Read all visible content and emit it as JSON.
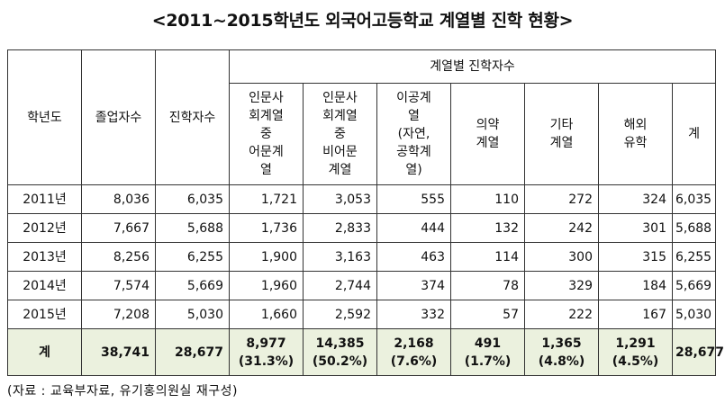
{
  "title": "<2011~2015학년도 외국어고등학교 계열별 진학 현황>",
  "headers": {
    "year": "학년도",
    "graduates": "졸업자수",
    "advancers": "진학자수",
    "by_track": "계열별 진학자수",
    "sub": [
      [
        "인문사",
        "회계열",
        "중",
        "어문계",
        "열"
      ],
      [
        "인문사",
        "회계열",
        "중",
        "비어문",
        "계열"
      ],
      [
        "이공계",
        "열",
        "(자연,",
        "공학계",
        "열)"
      ],
      [
        "의약",
        "계열"
      ],
      [
        "기타",
        "계열"
      ],
      [
        "해외",
        "유학"
      ],
      [
        "계"
      ]
    ]
  },
  "rows": [
    {
      "year": "2011년",
      "cells": [
        "8,036",
        "6,035",
        "1,721",
        "3,053",
        "555",
        "110",
        "272",
        "324",
        "6,035"
      ]
    },
    {
      "year": "2012년",
      "cells": [
        "7,667",
        "5,688",
        "1,736",
        "2,833",
        "444",
        "132",
        "242",
        "301",
        "5,688"
      ]
    },
    {
      "year": "2013년",
      "cells": [
        "8,256",
        "6,255",
        "1,900",
        "3,163",
        "463",
        "114",
        "300",
        "315",
        "6,255"
      ]
    },
    {
      "year": "2014년",
      "cells": [
        "7,574",
        "5,669",
        "1,960",
        "2,744",
        "374",
        "78",
        "329",
        "184",
        "5,669"
      ]
    },
    {
      "year": "2015년",
      "cells": [
        "7,208",
        "5,030",
        "1,660",
        "2,592",
        "332",
        "57",
        "222",
        "167",
        "5,030"
      ]
    }
  ],
  "total": {
    "label": "계",
    "cells": [
      {
        "value": "38,741"
      },
      {
        "value": "28,677"
      },
      {
        "value": "8,977",
        "pct": "(31.3%)"
      },
      {
        "value": "14,385",
        "pct": "(50.2%)"
      },
      {
        "value": "2,168",
        "pct": "(7.6%)"
      },
      {
        "value": "491",
        "pct": "(1.7%)"
      },
      {
        "value": "1,365",
        "pct": "(4.8%)"
      },
      {
        "value": "1,291",
        "pct": "(4.5%)"
      },
      {
        "value": "28,677"
      }
    ]
  },
  "source": "(자료 : 교육부자료, 유기홍의원실 재구성)"
}
